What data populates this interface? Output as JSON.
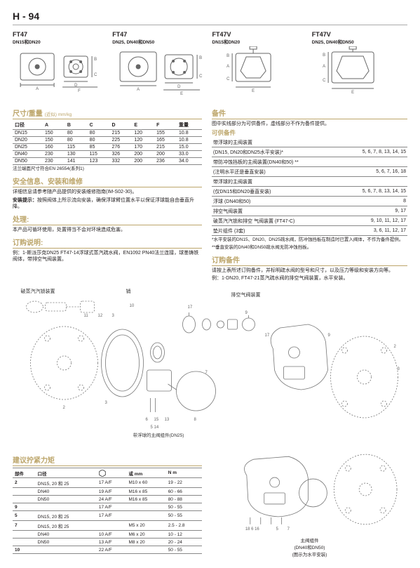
{
  "page_number": "H - 94",
  "diagrams": [
    {
      "title": "FT47",
      "subtitle": "DN15和DN20"
    },
    {
      "title": "FT47",
      "subtitle": "DN25, DN40和DN50"
    },
    {
      "title": "FT47V",
      "subtitle": "DN15和DN20"
    },
    {
      "title": "FT47V",
      "subtitle": "DN25, DN40和DN50"
    }
  ],
  "dims": {
    "title": "尺寸/重量",
    "unit": "(近似) mm/kg",
    "headers": [
      "口径",
      "A",
      "B",
      "C",
      "D",
      "E",
      "F",
      "重量"
    ],
    "rows": [
      [
        "DN15",
        "150",
        "80",
        "80",
        "215",
        "120",
        "155",
        "10.8"
      ],
      [
        "DN20",
        "150",
        "80",
        "80",
        "225",
        "120",
        "165",
        "10.8"
      ],
      [
        "DN25",
        "160",
        "115",
        "85",
        "276",
        "170",
        "215",
        "15.0"
      ],
      [
        "DN40",
        "230",
        "130",
        "115",
        "326",
        "200",
        "200",
        "33.0"
      ],
      [
        "DN50",
        "230",
        "141",
        "123",
        "332",
        "200",
        "236",
        "34.0"
      ]
    ],
    "flange_note": "法兰端面尺寸符合EN 26554(系列1)"
  },
  "safety": {
    "title": "安全信息、安装和维修",
    "text1": "详细信息请参考随产品提供的安装维修指南(IM-S02-30)。",
    "tip_label": "安装提示：",
    "tip_text": "按照阀体上所示流向安装，确保浮球臂位置水平以保证浮球能自由垂直升降。"
  },
  "processing": {
    "title": "处理:",
    "text": "本产品可循环使用，处置得当不会对环境造成危害。"
  },
  "ordering": {
    "title": "订购说明:",
    "example_label": "例：",
    "example_text": "1-斯派莎克DN25 FT47-14浮球式蒸汽疏水阀，EN1092 PN40法兰连接，球墨铸铁阀体，带排空气阀装置。"
  },
  "spares": {
    "title": "备件",
    "intro": "图中实线部分为可供备件，虚线部分不作为备件提供。",
    "subtitle": "可供备件",
    "rows": [
      {
        "name": "带浮球的主阀装置",
        "nums": ""
      },
      {
        "name": "(DN15, DN20和DN25水平安装)*",
        "nums": "5, 6, 7, 8, 13, 14, 15"
      },
      {
        "name": "带防冲蚀挡板的主阀装置(DN40和50) **",
        "nums": ""
      },
      {
        "name": "(注明水平还是垂直安装)",
        "nums": "5, 6, 7, 16, 18"
      },
      {
        "name": "带浮球的主阀装置",
        "nums": ""
      },
      {
        "name": "(仅DN15和DN20垂直安装)",
        "nums": "5, 6, 7, 8, 13, 14, 15"
      },
      {
        "name": "浮球 (DN40和50)",
        "nums": "8"
      },
      {
        "name": "排空气阀装置",
        "nums": "9, 17"
      },
      {
        "name": "破蒸汽汽锁和排空 气阀装置 (FT47-C)",
        "nums": "9, 10, 11, 12, 17"
      },
      {
        "name": "垫片组件 (3套)",
        "nums": "3, 6, 11, 12, 17"
      }
    ],
    "note1": "*水平安装的DN15、DN20、DN25疏水阀，防冲蚀挡板在制造时已置入阀体，不作为备件提供。",
    "note2": "**垂直安装的DN40和DN50疏水阀无防冲蚀挡板。"
  },
  "order_spares": {
    "title": "订购备件",
    "text1": "请按上表所述订购备件，并标明疏水阀的型号和尺寸，以及压力等级和安装方向等。",
    "example_label": "例：",
    "example_text": "1-DN20, FT47-21蒸汽疏水阀的排空气阀装置，水平安装。"
  },
  "exploded": {
    "label_lock": "破蒸汽汽锁装置",
    "label_shaft": "销",
    "label_airvent": "排空气阀装置",
    "label_main_dn25": "带浮球的主阀组件(DN25)",
    "label_main_dn40": "主阀组件\n(DN40和DN50)",
    "label_horiz": "(图示为水平安装)",
    "callout_nums": [
      "17",
      "9",
      "11",
      "12",
      "3",
      "2",
      "6",
      "15",
      "5",
      "14",
      "13",
      "8",
      "7",
      "10",
      "18",
      "16"
    ]
  },
  "torque": {
    "title": "建议拧紧力矩",
    "headers": {
      "part": "部件",
      "size": "口径",
      "hex": "",
      "mm": "或 mm",
      "nm": "N m"
    },
    "rows": [
      {
        "part": "2",
        "size": "DN15, 20 和 25",
        "hex": "17 A/F",
        "mm": "M10 x 60",
        "nm": "19 - 22"
      },
      {
        "part": "",
        "size": "DN40",
        "hex": "19 A/F",
        "mm": "M16 x 85",
        "nm": "60 - 66"
      },
      {
        "part": "",
        "size": "DN50",
        "hex": "24 A/F",
        "mm": "M16 x 85",
        "nm": "80 - 88"
      },
      {
        "part": "9",
        "size": "",
        "hex": "17 A/F",
        "mm": "",
        "nm": "50 - 55"
      },
      {
        "part": "5",
        "size": "DN15, 20 和 25",
        "hex": "17 A/F",
        "mm": "",
        "nm": "50 - 55"
      },
      {
        "part": "7",
        "size": "DN15, 20 和 25",
        "hex": "",
        "mm": "M5 x 20",
        "nm": "2.5 - 2.8"
      },
      {
        "part": "",
        "size": "DN40",
        "hex": "10 A/F",
        "mm": "M6 x 20",
        "nm": "10 - 12"
      },
      {
        "part": "",
        "size": "DN50",
        "hex": "13 A/F",
        "mm": "M8 x 20",
        "nm": "20 - 24"
      },
      {
        "part": "10",
        "size": "",
        "hex": "22 A/F",
        "mm": "",
        "nm": "50 - 55"
      }
    ]
  }
}
